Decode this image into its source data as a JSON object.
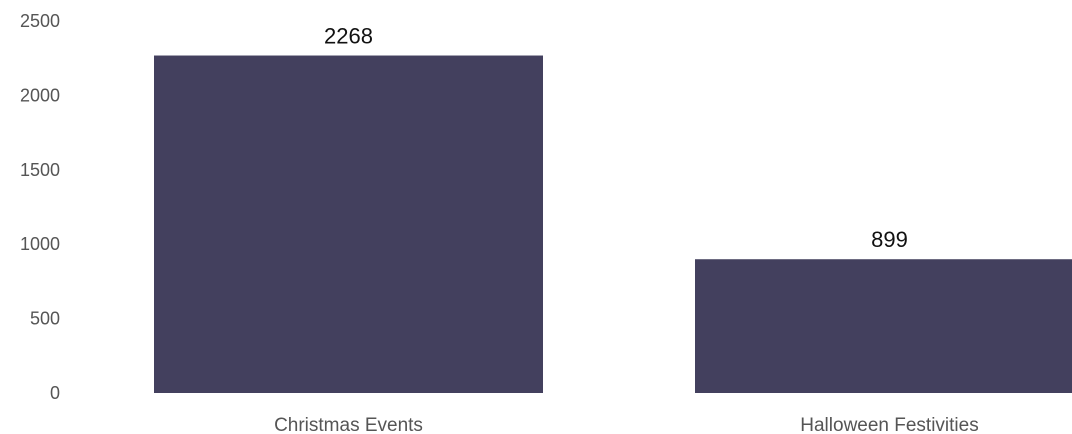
{
  "chart_data": {
    "type": "bar",
    "categories": [
      "Christmas Events",
      "Halloween Festivities"
    ],
    "values": [
      2268,
      899
    ],
    "data_labels": [
      "2268",
      "899"
    ],
    "title": "",
    "xlabel": "",
    "ylabel": "",
    "ylim": [
      0,
      2500
    ],
    "yticks": [
      0,
      500,
      1000,
      1500,
      2000,
      2500
    ],
    "ytick_labels": [
      "0",
      "500",
      "1000",
      "1500",
      "2000",
      "2500"
    ],
    "grid": false,
    "legend": "none",
    "bar_color": "#43405e"
  }
}
